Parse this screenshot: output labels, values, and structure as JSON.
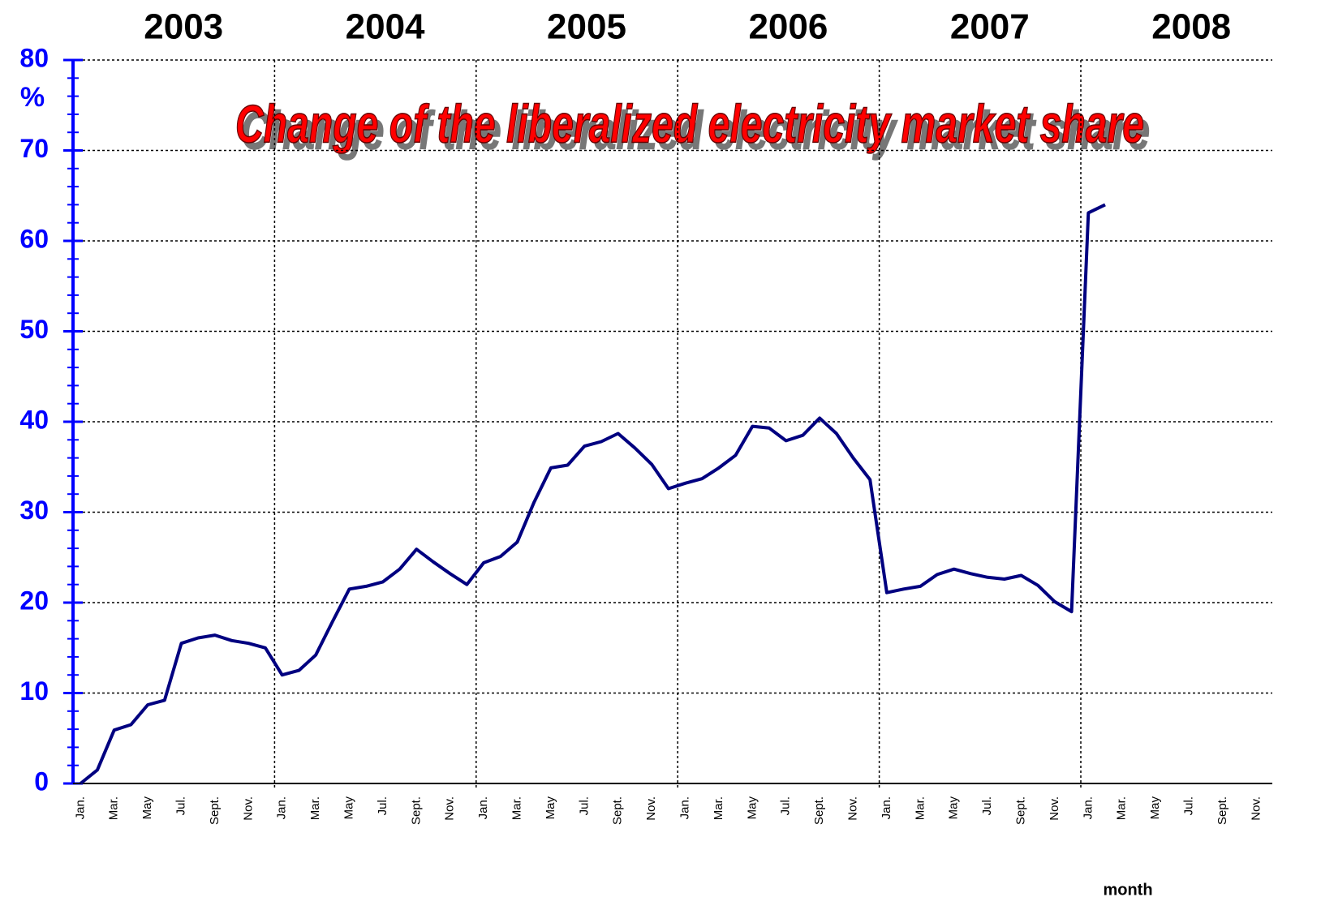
{
  "chart_data": {
    "type": "line",
    "title": "Change of the liberalized electricity market share",
    "y_unit": "%",
    "x_label": "month",
    "year_labels": [
      "2003",
      "2004",
      "2005",
      "2006",
      "2007",
      "2008"
    ],
    "categories": [
      "Jan.",
      null,
      "Mar.",
      null,
      "May",
      null,
      "Jul.",
      null,
      "Sept.",
      null,
      "Nov.",
      null,
      "Jan.",
      null,
      "Mar.",
      null,
      "May",
      null,
      "Jul.",
      null,
      "Sept.",
      null,
      "Nov.",
      null,
      "Jan.",
      null,
      "Mar.",
      null,
      "May",
      null,
      "Jul.",
      null,
      "Sept.",
      null,
      "Nov.",
      null,
      "Jan.",
      null,
      "Mar.",
      null,
      "May",
      null,
      "Jul.",
      null,
      "Sept.",
      null,
      "Nov.",
      null,
      "Jan.",
      null,
      "Mar.",
      null,
      "May",
      null,
      "Jul.",
      null,
      "Sept.",
      null,
      "Nov.",
      null,
      "Jan.",
      null,
      "Mar.",
      null,
      "May",
      null,
      "Jul.",
      null,
      "Sept.",
      null,
      "Nov.",
      null
    ],
    "series": [
      {
        "color": "#000080",
        "values": [
          0,
          1.5,
          5.9,
          6.5,
          8.7,
          9.2,
          15.5,
          16.1,
          16.4,
          15.8,
          15.5,
          15.0,
          12.0,
          12.5,
          14.2,
          17.9,
          21.5,
          21.8,
          22.3,
          23.7,
          25.9,
          24.5,
          23.2,
          22.0,
          24.4,
          25.1,
          26.7,
          31.1,
          34.9,
          35.2,
          37.3,
          37.8,
          38.7,
          37.1,
          35.3,
          32.6,
          33.2,
          33.7,
          34.9,
          36.3,
          39.5,
          39.3,
          37.9,
          38.5,
          40.4,
          38.7,
          36.0,
          33.6,
          21.1,
          21.5,
          21.8,
          23.1,
          23.7,
          23.2,
          22.8,
          22.6,
          23.0,
          21.9,
          20.1,
          19.0,
          63.1,
          64.0,
          null,
          null,
          null,
          null,
          null,
          null,
          null,
          null,
          null,
          null
        ]
      }
    ],
    "ylim": [
      0,
      80
    ],
    "yticks": [
      0,
      10,
      20,
      30,
      40,
      50,
      60,
      70,
      80
    ],
    "yminorticks": [
      2,
      4,
      6,
      8,
      12,
      14,
      16,
      18,
      22,
      24,
      26,
      28,
      32,
      34,
      36,
      38,
      42,
      44,
      46,
      48,
      52,
      54,
      56,
      58,
      62,
      64,
      66,
      68,
      72,
      74,
      76,
      78
    ],
    "grid": true
  }
}
